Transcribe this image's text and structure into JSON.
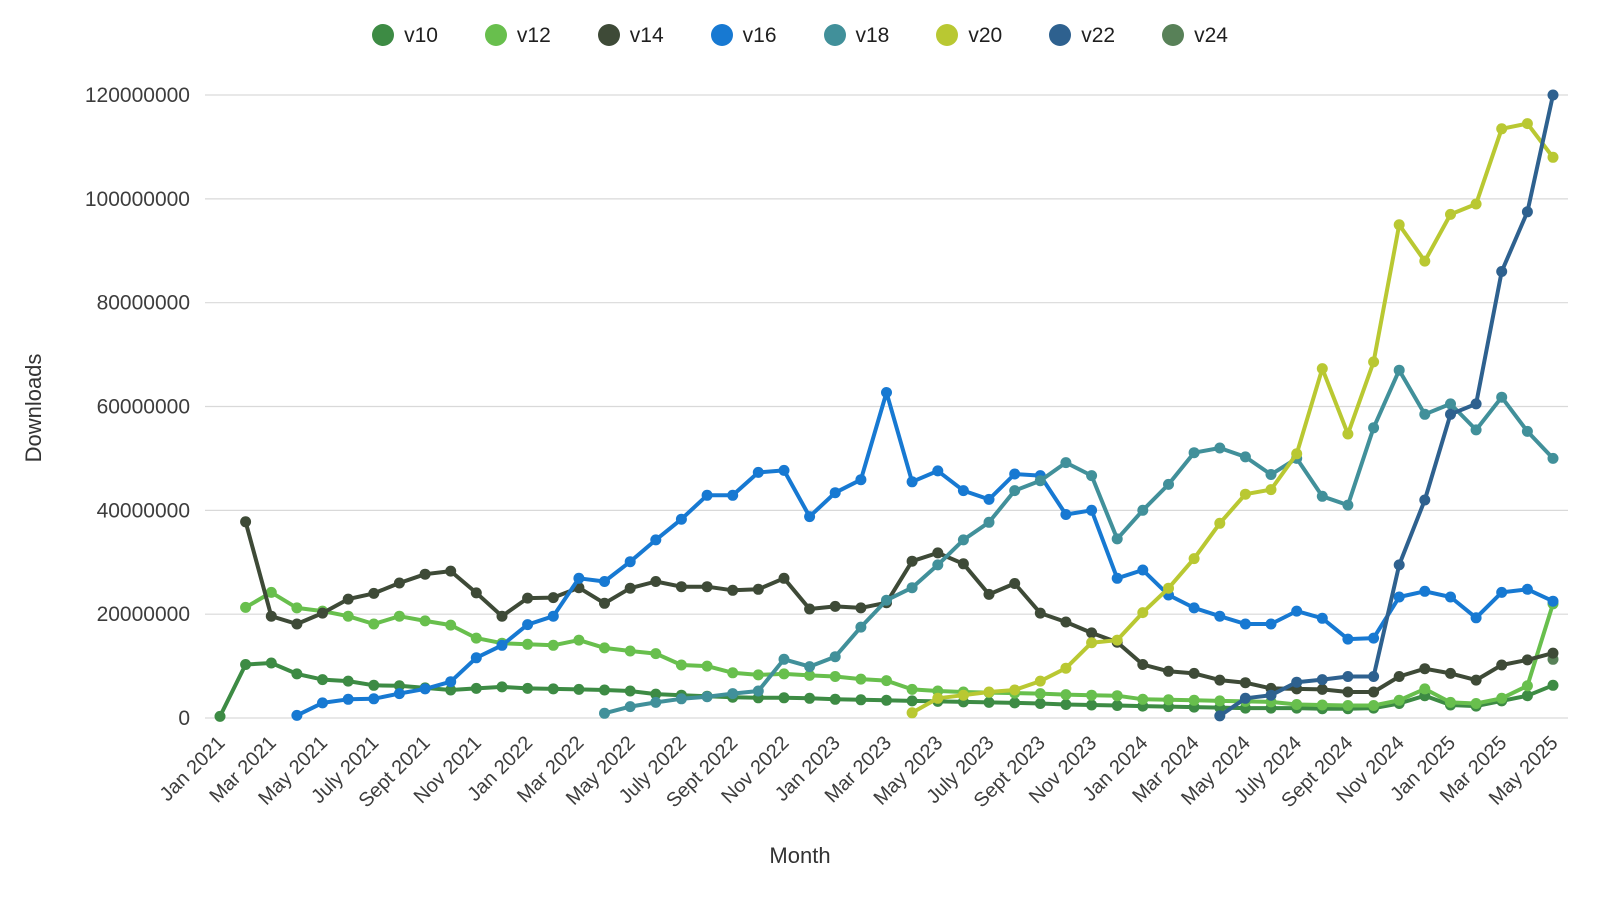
{
  "chart_data": {
    "type": "line",
    "title": "",
    "xlabel": "Month",
    "ylabel": "Downloads",
    "ylim": [
      0,
      120000000
    ],
    "y_ticks": [
      0,
      20000000,
      40000000,
      60000000,
      80000000,
      100000000,
      120000000
    ],
    "grid": "horizontal",
    "legend_position": "top",
    "values_unit": "millions of downloads",
    "x_tick_every": 2,
    "x": [
      "Jan 2021",
      "Feb 2021",
      "Mar 2021",
      "Apr 2021",
      "May 2021",
      "June 2021",
      "July 2021",
      "Aug 2021",
      "Sept 2021",
      "Oct 2021",
      "Nov 2021",
      "Dec 2021",
      "Jan 2022",
      "Feb 2022",
      "Mar 2022",
      "Apr 2022",
      "May 2022",
      "June 2022",
      "July 2022",
      "Aug 2022",
      "Sept 2022",
      "Oct 2022",
      "Nov 2022",
      "Dec 2022",
      "Jan 2023",
      "Feb 2023",
      "Mar 2023",
      "Apr 2023",
      "May 2023",
      "June 2023",
      "July 2023",
      "Aug 2023",
      "Sept 2023",
      "Oct 2023",
      "Nov 2023",
      "Dec 2023",
      "Jan 2024",
      "Feb 2024",
      "Mar 2024",
      "Apr 2024",
      "May 2024",
      "June 2024",
      "July 2024",
      "Aug 2024",
      "Sept 2024",
      "Oct 2024",
      "Nov 2024",
      "Dec 2024",
      "Jan 2025",
      "Feb 2025",
      "Mar 2025",
      "Apr 2025",
      "May 2025"
    ],
    "series": [
      {
        "name": "v10",
        "color": "#3d8b44",
        "values": [
          0.3,
          10.3,
          10.6,
          8.5,
          7.4,
          7.1,
          6.3,
          6.2,
          5.8,
          5.4,
          5.7,
          6.0,
          5.7,
          5.6,
          5.5,
          5.4,
          5.2,
          4.6,
          4.4,
          4.2,
          4.0,
          3.9,
          3.9,
          3.8,
          3.6,
          3.5,
          3.4,
          3.3,
          3.2,
          3.1,
          3.0,
          2.9,
          2.8,
          2.6,
          2.5,
          2.4,
          2.3,
          2.2,
          2.1,
          2.0,
          1.9,
          1.9,
          1.9,
          1.8,
          1.8,
          1.9,
          2.8,
          4.3,
          2.5,
          2.3,
          3.3,
          4.3,
          6.3
        ]
      },
      {
        "name": "v12",
        "color": "#68bf4d",
        "values": [
          null,
          21.3,
          24.2,
          21.2,
          20.6,
          19.6,
          18.1,
          19.6,
          18.7,
          17.9,
          15.4,
          14.4,
          14.2,
          14.0,
          15.0,
          13.5,
          12.9,
          12.4,
          10.2,
          10.0,
          8.7,
          8.3,
          8.5,
          8.2,
          8.0,
          7.5,
          7.2,
          5.5,
          5.2,
          5.0,
          4.9,
          4.8,
          4.7,
          4.5,
          4.4,
          4.3,
          3.6,
          3.5,
          3.4,
          3.3,
          3.2,
          3.1,
          2.6,
          2.5,
          2.4,
          2.4,
          3.4,
          5.6,
          3.0,
          2.8,
          3.8,
          6.2,
          22.0
        ]
      },
      {
        "name": "v14",
        "color": "#3e4a37",
        "values": [
          null,
          37.8,
          19.6,
          18.1,
          20.2,
          22.9,
          24.0,
          26.0,
          27.7,
          28.3,
          24.1,
          19.6,
          23.1,
          23.2,
          25.1,
          22.1,
          25.0,
          26.3,
          25.3,
          25.3,
          24.6,
          24.8,
          26.9,
          21.0,
          21.5,
          21.2,
          22.2,
          30.2,
          31.8,
          29.7,
          23.8,
          25.9,
          20.2,
          18.5,
          16.4,
          14.6,
          10.3,
          9.0,
          8.6,
          7.3,
          6.8,
          5.7,
          5.6,
          5.5,
          5.0,
          5.0,
          8.0,
          9.5,
          8.6,
          7.3,
          10.2,
          11.2,
          12.5
        ]
      },
      {
        "name": "v16",
        "color": "#1779d2",
        "values": [
          null,
          null,
          null,
          0.5,
          2.9,
          3.6,
          3.7,
          4.7,
          5.6,
          7.0,
          11.6,
          14.0,
          18.0,
          19.6,
          26.9,
          26.3,
          30.1,
          34.3,
          38.3,
          42.9,
          42.9,
          47.3,
          47.7,
          38.8,
          43.4,
          45.9,
          62.7,
          45.5,
          47.6,
          43.8,
          42.1,
          47.0,
          46.7,
          39.2,
          40.0,
          26.9,
          28.5,
          23.7,
          21.2,
          19.6,
          18.1,
          18.1,
          20.6,
          19.2,
          15.2,
          15.4,
          23.3,
          24.4,
          23.3,
          19.3,
          24.2,
          24.8,
          22.5
        ]
      },
      {
        "name": "v18",
        "color": "#41909a",
        "values": [
          null,
          null,
          null,
          null,
          null,
          null,
          null,
          null,
          null,
          null,
          null,
          null,
          null,
          null,
          null,
          0.9,
          2.2,
          3.0,
          3.7,
          4.1,
          4.7,
          5.2,
          11.3,
          9.9,
          11.8,
          17.5,
          22.7,
          25.1,
          29.5,
          34.3,
          37.7,
          43.8,
          45.7,
          49.2,
          46.7,
          34.5,
          40.0,
          45.0,
          51.1,
          52.0,
          50.3,
          46.9,
          50.0,
          42.7,
          41.0,
          55.9,
          67.0,
          58.5,
          60.5,
          55.5,
          61.8,
          55.2,
          50.0
        ]
      },
      {
        "name": "v20",
        "color": "#b9c832",
        "values": [
          null,
          null,
          null,
          null,
          null,
          null,
          null,
          null,
          null,
          null,
          null,
          null,
          null,
          null,
          null,
          null,
          null,
          null,
          null,
          null,
          null,
          null,
          null,
          null,
          null,
          null,
          null,
          1.0,
          3.8,
          4.4,
          5.0,
          5.4,
          7.1,
          9.6,
          14.5,
          15.0,
          20.3,
          25.0,
          30.7,
          37.5,
          43.1,
          44.0,
          50.9,
          67.3,
          54.7,
          68.6,
          95.0,
          88.0,
          97.0,
          99.0,
          113.5,
          114.5,
          108.0
        ]
      },
      {
        "name": "v22",
        "color": "#2e618f",
        "values": [
          null,
          null,
          null,
          null,
          null,
          null,
          null,
          null,
          null,
          null,
          null,
          null,
          null,
          null,
          null,
          null,
          null,
          null,
          null,
          null,
          null,
          null,
          null,
          null,
          null,
          null,
          null,
          null,
          null,
          null,
          null,
          null,
          null,
          null,
          null,
          null,
          null,
          null,
          null,
          0.4,
          3.8,
          4.4,
          6.9,
          7.4,
          8.0,
          8.0,
          29.5,
          42.0,
          58.5,
          60.5,
          86.0,
          97.5,
          120.0
        ]
      },
      {
        "name": "v24",
        "color": "#588158",
        "values": [
          null,
          null,
          null,
          null,
          null,
          null,
          null,
          null,
          null,
          null,
          null,
          null,
          null,
          null,
          null,
          null,
          null,
          null,
          null,
          null,
          null,
          null,
          null,
          null,
          null,
          null,
          null,
          null,
          null,
          null,
          null,
          null,
          null,
          null,
          null,
          null,
          null,
          null,
          null,
          null,
          null,
          null,
          null,
          null,
          null,
          null,
          null,
          null,
          null,
          null,
          null,
          null,
          11.3
        ]
      }
    ]
  },
  "style": {
    "grid_color": "#d9d9d9",
    "tick_text_color": "#3d3d3d",
    "axis_title_color": "#333333"
  }
}
